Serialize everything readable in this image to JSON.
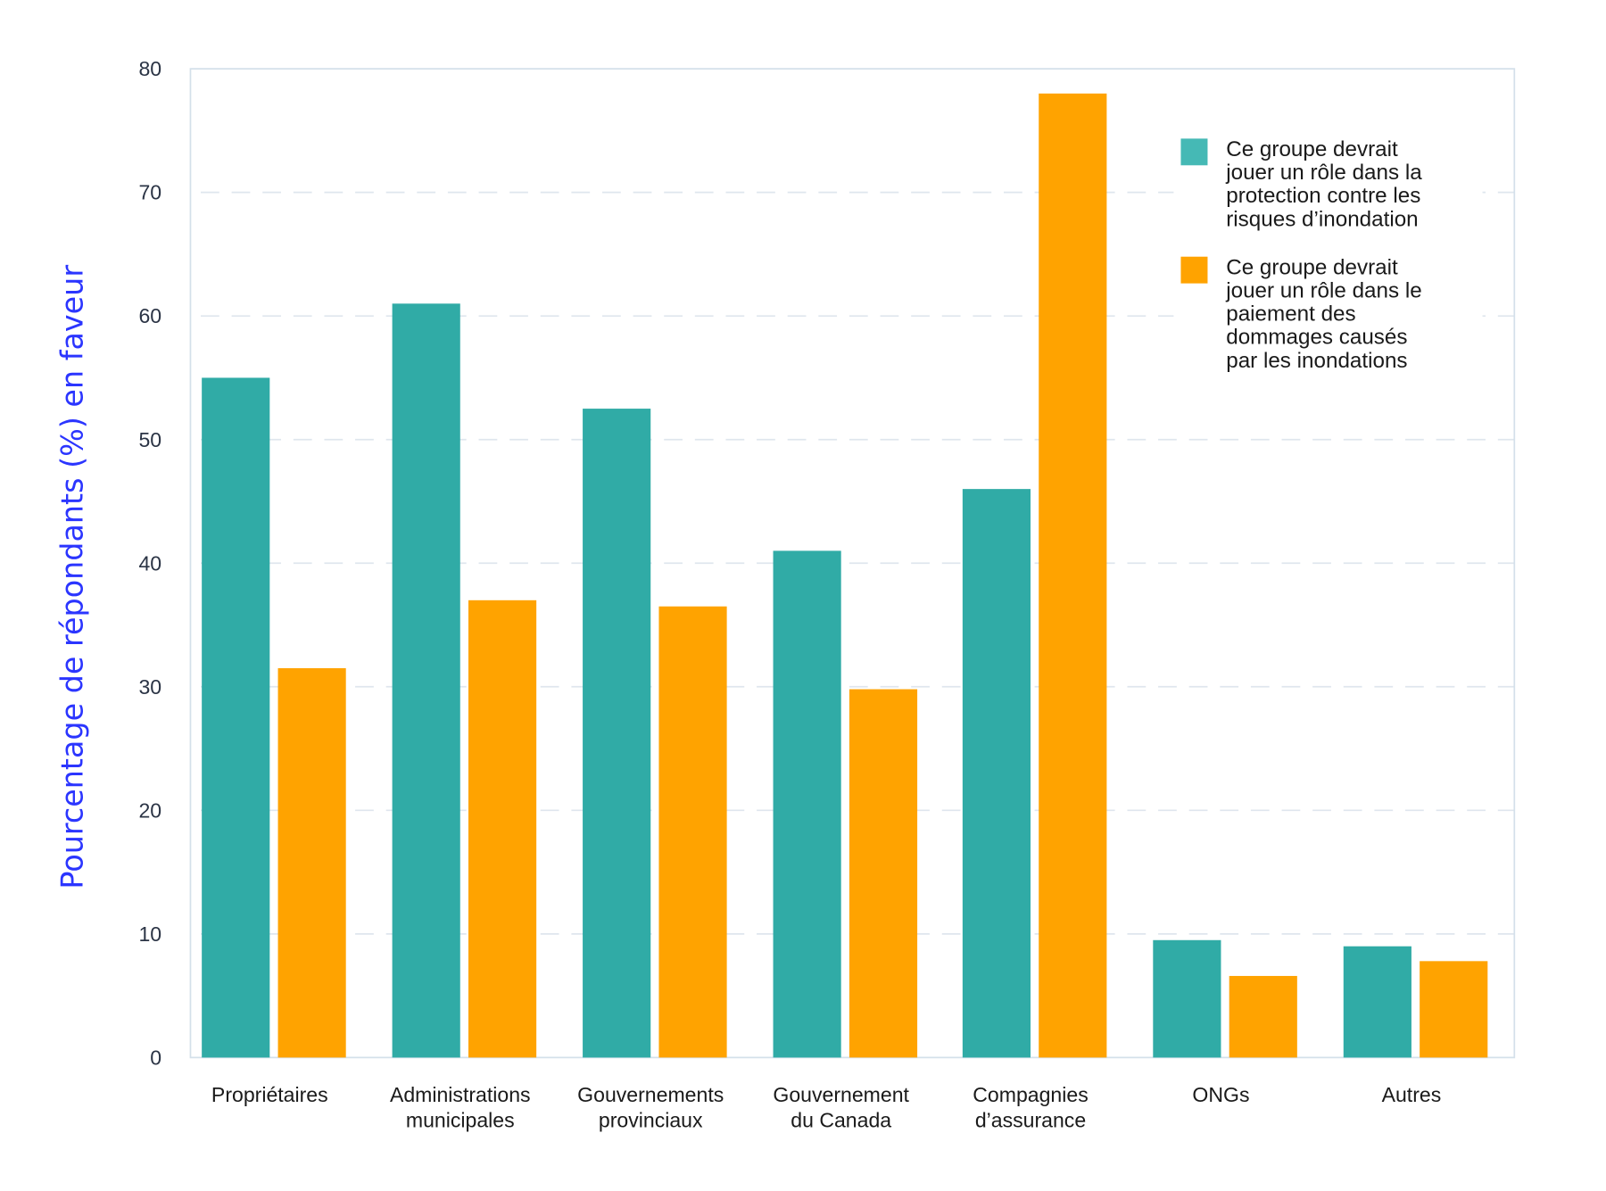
{
  "chart_data": {
    "type": "bar",
    "title": "",
    "xlabel": "",
    "ylabel": "Pourcentage de répondants (%) en faveur",
    "ylim": [
      0,
      80
    ],
    "yticks": [
      0,
      10,
      20,
      30,
      40,
      50,
      60,
      70,
      80
    ],
    "grid": true,
    "legend_position": "top-right",
    "categories": [
      [
        "Propriétaires"
      ],
      [
        "Administrations",
        "municipales"
      ],
      [
        "Gouvernements",
        "provinciaux"
      ],
      [
        "Gouvernement",
        "du Canada"
      ],
      [
        "Compagnies",
        "d’assurance"
      ],
      [
        "ONGs"
      ],
      [
        "Autres"
      ]
    ],
    "series": [
      {
        "name": [
          "Ce groupe devrait",
          "jouer un rôle dans la",
          "protection contre les",
          "risques d’inondation"
        ],
        "color": "#30aba6",
        "legend_color": "#45b9b5",
        "values": [
          55,
          61,
          52.5,
          41,
          46,
          9.5,
          9
        ]
      },
      {
        "name": [
          "Ce groupe devrait",
          "jouer un rôle dans le",
          "paiement des",
          "dommages causés",
          "par les inondations"
        ],
        "color": "#ffa300",
        "legend_color": "#ffa300",
        "values": [
          31.5,
          37,
          36.5,
          29.8,
          78,
          6.6,
          7.8
        ]
      }
    ]
  }
}
